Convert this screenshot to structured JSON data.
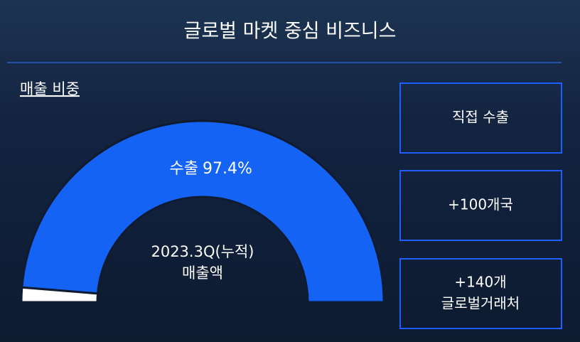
{
  "header": {
    "title": "글로벌 마켓 중심 비즈니스"
  },
  "chart_data": {
    "type": "pie",
    "shape": "half-donut",
    "title": "매출 비중",
    "categories": [
      "수출",
      null
    ],
    "values": [
      97.4,
      2.6
    ],
    "value_labels": [
      "97.4%",
      null
    ],
    "colors": [
      "#1463f5",
      "#ffffff"
    ],
    "center_label": [
      "2023.3Q(누적)",
      "매출액"
    ]
  },
  "boxes": [
    [
      "직접 수출"
    ],
    [
      "+100개국"
    ],
    [
      "+140개",
      "글로벌거래처"
    ]
  ]
}
